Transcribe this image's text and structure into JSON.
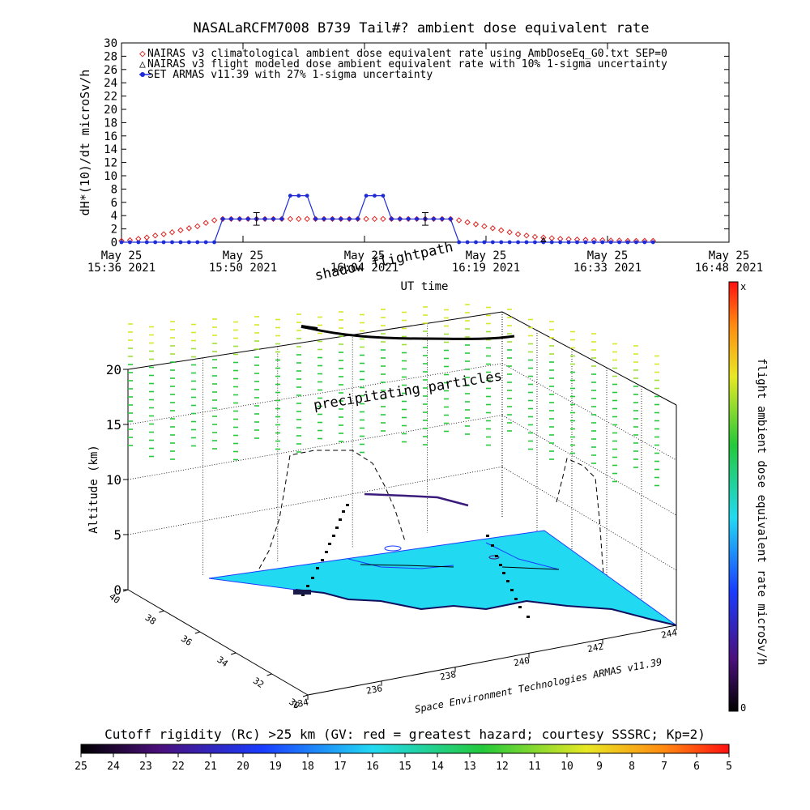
{
  "chart_data": [
    {
      "type": "line",
      "title": "NASALaRCFM7008  B739 Tail#? ambient dose equivalent rate",
      "xlabel": "UT time",
      "ylabel": "dH*(10)/dt microSv/h",
      "ylim": [
        0,
        30
      ],
      "y_ticks": [
        "0",
        "2",
        "4",
        "6",
        "8",
        "10",
        "12",
        "14",
        "16",
        "18",
        "20",
        "22",
        "24",
        "26",
        "28",
        "30"
      ],
      "x_tick_labels": [
        {
          "line1": "May 25",
          "line2": "15:36 2021"
        },
        {
          "line1": "May 25",
          "line2": "15:50 2021"
        },
        {
          "line1": "May 25",
          "line2": "16:04 2021"
        },
        {
          "line1": "May 25",
          "line2": "16:19 2021"
        },
        {
          "line1": "May 25",
          "line2": "16:33 2021"
        },
        {
          "line1": "May 25",
          "line2": "16:48 2021"
        }
      ],
      "xlim_minutes_after_15_36": [
        0,
        72
      ],
      "legend_position": "top-left",
      "legend": [
        "NAIRAS v3 climatological ambient dose equivalent rate using AmbDoseEq_G0.txt SEP=0",
        "NAIRAS v3 flight modeled dose ambient equivalent rate with 10% 1-sigma uncertainty",
        "SET ARMAS v11.39 with 27% 1-sigma uncertainty"
      ],
      "series": [
        {
          "name": "NAIRAS v3 climatological ambient dose equivalent rate using AmbDoseEq_G0.txt SEP=0",
          "color": "#e0201c",
          "marker": "diamond",
          "x": [
            0,
            1,
            2,
            3,
            4,
            5,
            6,
            7,
            8,
            9,
            10,
            11,
            12,
            13,
            14,
            15,
            16,
            17,
            18,
            19,
            20,
            21,
            22,
            23,
            24,
            25,
            26,
            27,
            28,
            29,
            30,
            31,
            32,
            33,
            34,
            35,
            36,
            37,
            38,
            39,
            40,
            41,
            42,
            43,
            44,
            45,
            46,
            47,
            48,
            49,
            50,
            51,
            52,
            53,
            54,
            55,
            56,
            57,
            58,
            59,
            60,
            61,
            62,
            63
          ],
          "y": [
            0.2,
            0.3,
            0.5,
            0.7,
            1.0,
            1.2,
            1.5,
            1.8,
            2.1,
            2.4,
            2.9,
            3.3,
            3.5,
            3.5,
            3.5,
            3.5,
            3.5,
            3.5,
            3.5,
            3.5,
            3.5,
            3.5,
            3.5,
            3.5,
            3.5,
            3.5,
            3.5,
            3.5,
            3.5,
            3.5,
            3.5,
            3.5,
            3.5,
            3.5,
            3.5,
            3.5,
            3.5,
            3.5,
            3.5,
            3.5,
            3.3,
            3.0,
            2.7,
            2.4,
            2.1,
            1.8,
            1.5,
            1.2,
            1.0,
            0.8,
            0.7,
            0.6,
            0.5,
            0.45,
            0.4,
            0.35,
            0.3,
            0.3,
            0.25,
            0.25,
            0.2,
            0.2,
            0.2,
            0.2
          ]
        },
        {
          "name": "SET ARMAS v11.39 with 27% 1-sigma uncertainty",
          "color": "#1c2bd6",
          "marker": "circle",
          "x": [
            0,
            1,
            2,
            3,
            4,
            5,
            6,
            7,
            8,
            9,
            10,
            11,
            12,
            13,
            14,
            15,
            16,
            17,
            18,
            19,
            20,
            21,
            22,
            23,
            24,
            25,
            26,
            27,
            28,
            29,
            30,
            31,
            32,
            33,
            34,
            35,
            36,
            37,
            38,
            39,
            40,
            41,
            42,
            43,
            44,
            45,
            46,
            47,
            48,
            49,
            50,
            51,
            52,
            53,
            54,
            55,
            56,
            57,
            58,
            59,
            60,
            61,
            62,
            63
          ],
          "y": [
            0,
            0,
            0,
            0,
            0,
            0,
            0,
            0,
            0,
            0,
            0,
            0,
            3.5,
            3.5,
            3.5,
            3.5,
            3.5,
            3.5,
            3.5,
            3.5,
            7.0,
            7.0,
            7.0,
            3.5,
            3.5,
            3.5,
            3.5,
            3.5,
            3.5,
            7.0,
            7.0,
            7.0,
            3.5,
            3.5,
            3.5,
            3.5,
            3.5,
            3.5,
            3.5,
            3.5,
            0,
            0,
            0,
            0,
            0,
            0,
            0,
            0,
            0,
            0,
            0,
            0,
            0,
            0,
            0,
            0,
            0,
            0,
            0,
            0,
            0,
            0,
            0,
            0
          ]
        },
        {
          "name": "NAIRAS v3 flight modeled dose ambient equivalent rate with 10% 1-sigma uncertainty",
          "color": "#000000",
          "marker": "triangle",
          "x": [
            50
          ],
          "y": [
            0.3
          ]
        }
      ],
      "error_bars": [
        {
          "x": 16,
          "y": 3.5,
          "err": 0.95
        },
        {
          "x": 36,
          "y": 3.5,
          "err": 0.95
        }
      ]
    },
    {
      "type": "scatter",
      "subtype": "3d-flightpath",
      "annotations": [
        "shadow flightpath",
        "precipitating particles"
      ],
      "zlabel": "Altitude (km)",
      "z_ticks": [
        "0",
        "5",
        "10",
        "15",
        "20"
      ],
      "lat_ticks": [
        "30",
        "32",
        "34",
        "36",
        "38",
        "40"
      ],
      "lon_ticks": [
        "234",
        "236",
        "238",
        "240",
        "242",
        "244"
      ],
      "credit": "Space Environment Technologies ARMAS v11.39",
      "colorbar_label": "flight ambient dose equivalent rate microSv/h",
      "colorbar_top": "x",
      "colorbar_bottom": "0",
      "surface_color": "#22d9f2"
    },
    {
      "type": "heatmap",
      "subtype": "colorbar",
      "title": "Cutoff rigidity (Rc) >25 km (GV: red = greatest hazard; courtesy SSSRC; Kp=2)",
      "tick_labels": [
        "25",
        "24",
        "23",
        "22",
        "21",
        "20",
        "19",
        "18",
        "17",
        "16",
        "15",
        "14",
        "13",
        "12",
        "11",
        "10",
        "9",
        "8",
        "7",
        "6",
        "5"
      ]
    }
  ]
}
